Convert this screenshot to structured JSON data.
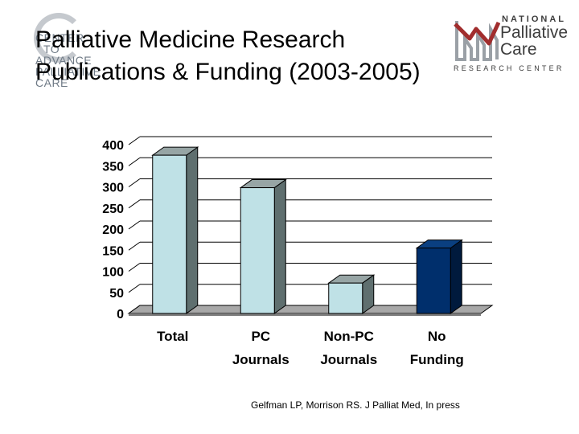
{
  "slide": {
    "title_lines": [
      "Palliative Medicine Research",
      "Publications & Funding (2003-2005)"
    ],
    "citation": "Gelfman LP, Morrison RS.  J Palliat Med, In press"
  },
  "logos": {
    "left": {
      "lines": [
        "CENTER",
        "TO",
        "ADVANCE",
        "PALLIATIVE",
        "CARE"
      ],
      "ring_color": "#b7bcc2",
      "text_color": "#6f7a86"
    },
    "right": {
      "line1": "NATIONAL",
      "line2": "Palliative",
      "line3": "Care",
      "line4": "RESEARCH CENTER",
      "accent": "#a12d2d",
      "text_color": "#3c3c3c"
    }
  },
  "chart_data": {
    "type": "bar",
    "categories": [
      [
        "Total"
      ],
      [
        "PC",
        "Journals"
      ],
      [
        "Non-PC",
        "Journals"
      ],
      [
        "No",
        "Funding"
      ]
    ],
    "values": [
      375,
      298,
      72,
      155
    ],
    "bar_colors": [
      "#bfe1e6",
      "#bfe1e6",
      "#bfe1e6",
      "#002f6c"
    ],
    "ylim": [
      0,
      400
    ],
    "yticks": [
      0,
      50,
      100,
      150,
      200,
      250,
      300,
      350,
      400
    ],
    "grid": true,
    "style": "3d"
  }
}
